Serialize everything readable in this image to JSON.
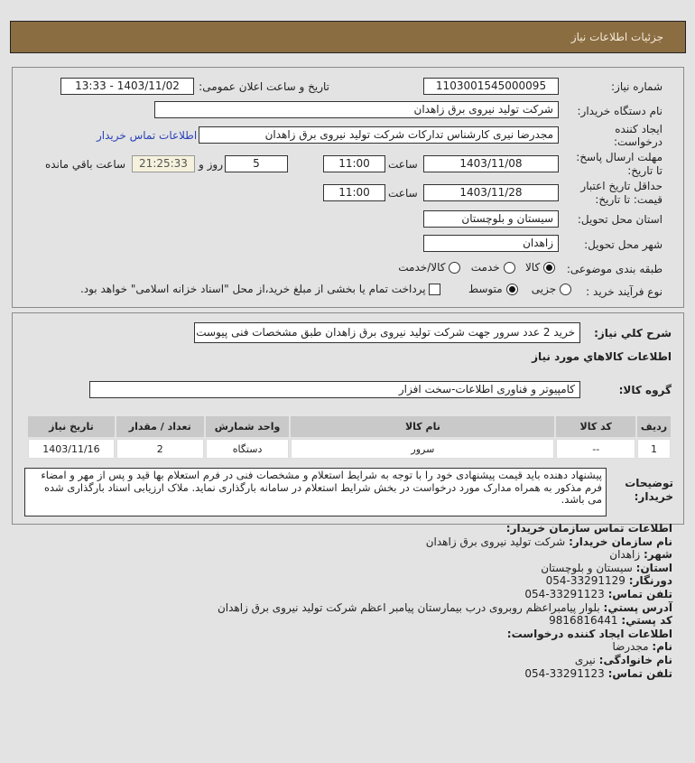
{
  "header": {
    "title": "جزئیات اطلاعات نیاز"
  },
  "form": {
    "need_number_label": "شماره نیاز:",
    "need_number": "1103001545000095",
    "announce_label": "تاریخ و ساعت اعلان عمومی:",
    "announce_value": "1403/11/02 - 13:33",
    "buyer_label": "نام دستگاه خریدار:",
    "buyer_value": "شرکت تولید نیروی برق زاهدان",
    "creator_label": "ایجاد کننده درخواست:",
    "creator_value": "مجدرضا نیری کارشناس تدارکات شرکت تولید نیروی برق زاهدان",
    "contact_link": "اطلاعات تماس خریدار",
    "deadline_label": "مهلت ارسال پاسخ: تا تاریخ:",
    "deadline_date": "1403/11/08",
    "time_label": "ساعت",
    "deadline_time": "11:00",
    "days": "5",
    "days_label": "روز و",
    "remaining": "21:25:33",
    "remaining_label": "ساعت باقي مانده",
    "validity_label": "حداقل تاریخ اعتبار قیمت: تا تاریخ:",
    "validity_date": "1403/11/28",
    "validity_time": "11:00",
    "province_label": "استان محل تحویل:",
    "province": "سیستان و بلوچستان",
    "city_label": "شهر محل تحویل:",
    "city": "زاهدان",
    "category_label": "طبقه بندی موضوعی:",
    "category_options": [
      "کالا",
      "خدمت",
      "کالا/خدمت"
    ],
    "category_selected": 0,
    "process_label": "نوع فرآیند خرید :",
    "process_options": [
      "جزیی",
      "متوسط"
    ],
    "process_selected": 1,
    "payment_note": "پرداخت تمام یا بخشی از مبلغ خرید،از محل \"اسناد خزانه اسلامی\" خواهد بود.",
    "payment_checked": false
  },
  "details": {
    "summary_label": "شرح کلي نياز:",
    "summary": "خرید 2 عدد سرور جهت شرکت تولید نیروی برق زاهدان طبق مشخصات فنی پیوست",
    "goods_heading": "اطلاعات کالاهاي مورد نياز",
    "group_label": "گروه کالا:",
    "group": "کامپیوتر و فناوری اطلاعات-سخت افزار",
    "table": {
      "headers": [
        "ردیف",
        "کد کالا",
        "نام کالا",
        "واحد شمارش",
        "تعداد / مقدار",
        "تاریخ نیاز"
      ],
      "rows": [
        [
          "1",
          "--",
          "سرور",
          "دستگاه",
          "2",
          "1403/11/16"
        ]
      ]
    },
    "notes_label": "توضیحات خریدار:",
    "notes": "پیشنهاد دهنده باید قیمت پیشنهادی خود را با توجه به شرایط استعلام و مشخصات فنی در فرم استعلام بها قید و پس از مهر و امضاء فرم مذکور به همراه مدارک مورد درخواست در بخش شرایط استعلام در سامانه بارگذاری نماید. ملاک ارزیابی اسناد بارگذاری شده می باشد."
  },
  "contact": {
    "heading": "اطلاعات تماس سازمان خریدار:",
    "org_label": "نام سازمان خریدار:",
    "org": "شرکت تولید نیروی برق زاهدان",
    "city_label": "شهر:",
    "city": "زاهدان",
    "province_label": "استان:",
    "province": "سیستان و بلوچستان",
    "fax_label": "دورنگار:",
    "fax": "33291129-054",
    "phone_label": "تلفن تماس:",
    "phone": "33291123-054",
    "address_label": "آدرس پستي:",
    "address": "بلوار پیامبراعظم روبروی درب بیمارستان پیامبر اعظم شرکت تولید نیروی برق زاهدان",
    "postal_label": "کد پستي:",
    "postal": "9816816441",
    "creator_heading": "اطلاعات ایجاد کننده درخواست:",
    "name_label": "نام:",
    "name": "مجدرضا",
    "family_label": "نام خانوادگی:",
    "family": "نیری",
    "creator_phone_label": "تلفن تماس:",
    "creator_phone": "33291123-054"
  }
}
